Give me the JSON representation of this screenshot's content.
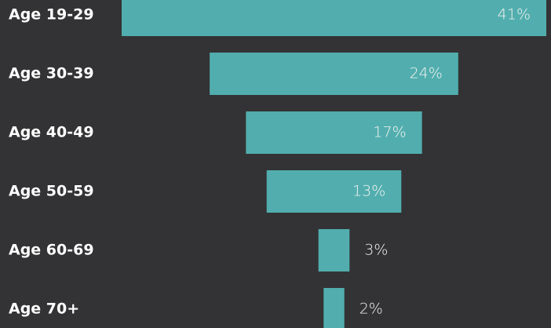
{
  "chart_data": {
    "type": "funnel",
    "categories": [
      "Age 19-29",
      "Age 30-39",
      "Age 40-49",
      "Age 50-59",
      "Age 60-69",
      "Age 70+"
    ],
    "values": [
      41,
      24,
      17,
      13,
      3,
      2
    ],
    "value_labels": [
      "41%",
      "24%",
      "17%",
      "13%",
      "3%",
      "2%"
    ],
    "color": "#52aeae"
  }
}
